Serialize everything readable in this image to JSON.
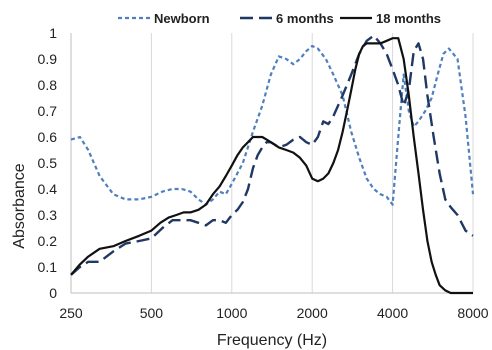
{
  "chart_data": {
    "type": "line",
    "xlabel": "Frequency (Hz)",
    "ylabel": "Absorbance",
    "x_scale": "log",
    "xlim": [
      250,
      8000
    ],
    "ylim": [
      0,
      1
    ],
    "x_ticks": [
      250,
      500,
      1000,
      2000,
      4000,
      8000
    ],
    "x_tick_labels": [
      "250",
      "500",
      "1000",
      "2000",
      "4000",
      "8000"
    ],
    "y_ticks": [
      0,
      0.1,
      0.2,
      0.3,
      0.4,
      0.5,
      0.6,
      0.7,
      0.8,
      0.9,
      1
    ],
    "y_tick_labels": [
      "0",
      "0.1",
      "0.2",
      "0.3",
      "0.4",
      "0.5",
      "0.6",
      "0.7",
      "0.8",
      "0.9",
      "1"
    ],
    "grid": "vertical",
    "legend_position": "top",
    "series": [
      {
        "name": "Newborn",
        "color": "#4f7fbd",
        "dash": "short-dash",
        "x": [
          250,
          270,
          290,
          320,
          360,
          400,
          450,
          500,
          550,
          600,
          650,
          700,
          750,
          800,
          850,
          900,
          950,
          1000,
          1100,
          1200,
          1300,
          1400,
          1500,
          1600,
          1700,
          1800,
          1900,
          2000,
          2100,
          2250,
          2400,
          2600,
          2800,
          3000,
          3200,
          3400,
          3600,
          3800,
          4000,
          4200,
          4400,
          4600,
          4800,
          5000,
          5300,
          5600,
          5900,
          6200,
          6500,
          7000,
          7500,
          8000
        ],
        "y": [
          0.59,
          0.6,
          0.55,
          0.45,
          0.38,
          0.36,
          0.36,
          0.37,
          0.39,
          0.4,
          0.4,
          0.39,
          0.36,
          0.34,
          0.36,
          0.39,
          0.38,
          0.42,
          0.5,
          0.62,
          0.72,
          0.84,
          0.91,
          0.9,
          0.88,
          0.9,
          0.93,
          0.95,
          0.94,
          0.9,
          0.84,
          0.76,
          0.62,
          0.52,
          0.44,
          0.4,
          0.38,
          0.37,
          0.34,
          0.6,
          0.84,
          0.7,
          0.64,
          0.66,
          0.7,
          0.75,
          0.84,
          0.92,
          0.94,
          0.9,
          0.68,
          0.38
        ]
      },
      {
        "name": "6 months",
        "color": "#1f3864",
        "dash": "long-dash",
        "x": [
          250,
          270,
          290,
          320,
          360,
          400,
          450,
          500,
          550,
          600,
          650,
          700,
          750,
          800,
          850,
          900,
          950,
          1000,
          1050,
          1100,
          1150,
          1200,
          1250,
          1300,
          1350,
          1400,
          1450,
          1500,
          1600,
          1700,
          1800,
          1900,
          2000,
          2100,
          2200,
          2300,
          2400,
          2600,
          2800,
          3000,
          3200,
          3400,
          3600,
          3800,
          4000,
          4200,
          4400,
          4600,
          4800,
          5000,
          5200,
          5400,
          5700,
          6000,
          6300,
          6600,
          7000,
          7500,
          8000
        ],
        "y": [
          0.07,
          0.1,
          0.12,
          0.12,
          0.16,
          0.19,
          0.2,
          0.21,
          0.25,
          0.28,
          0.28,
          0.28,
          0.27,
          0.26,
          0.28,
          0.28,
          0.27,
          0.3,
          0.32,
          0.35,
          0.4,
          0.48,
          0.53,
          0.56,
          0.58,
          0.58,
          0.57,
          0.56,
          0.57,
          0.59,
          0.6,
          0.58,
          0.57,
          0.6,
          0.66,
          0.65,
          0.68,
          0.76,
          0.84,
          0.92,
          0.97,
          0.99,
          0.96,
          0.92,
          0.86,
          0.8,
          0.72,
          0.78,
          0.93,
          0.96,
          0.9,
          0.76,
          0.6,
          0.46,
          0.36,
          0.33,
          0.3,
          0.24,
          0.22
        ]
      },
      {
        "name": "18 months",
        "color": "#111111",
        "dash": "solid",
        "x": [
          250,
          270,
          290,
          320,
          360,
          400,
          450,
          500,
          540,
          580,
          620,
          660,
          700,
          750,
          800,
          850,
          900,
          950,
          1000,
          1050,
          1100,
          1150,
          1200,
          1250,
          1300,
          1350,
          1400,
          1450,
          1500,
          1600,
          1700,
          1800,
          1900,
          2000,
          2100,
          2200,
          2300,
          2400,
          2500,
          2600,
          2700,
          2800,
          2900,
          3000,
          3100,
          3200,
          3300,
          3400,
          3600,
          3800,
          4000,
          4200,
          4400,
          4600,
          4800,
          5000,
          5200,
          5400,
          5600,
          5800,
          6000,
          6300,
          6600,
          7000,
          7500,
          8000
        ],
        "y": [
          0.07,
          0.11,
          0.14,
          0.17,
          0.18,
          0.2,
          0.22,
          0.24,
          0.27,
          0.29,
          0.3,
          0.31,
          0.31,
          0.32,
          0.34,
          0.38,
          0.41,
          0.45,
          0.49,
          0.53,
          0.56,
          0.58,
          0.6,
          0.6,
          0.6,
          0.59,
          0.58,
          0.57,
          0.56,
          0.55,
          0.54,
          0.52,
          0.49,
          0.44,
          0.43,
          0.44,
          0.46,
          0.5,
          0.55,
          0.62,
          0.7,
          0.78,
          0.86,
          0.92,
          0.95,
          0.96,
          0.96,
          0.96,
          0.96,
          0.97,
          0.98,
          0.98,
          0.9,
          0.76,
          0.6,
          0.46,
          0.32,
          0.2,
          0.12,
          0.07,
          0.03,
          0.01,
          0.0,
          0.0,
          0.0,
          0.0
        ]
      }
    ]
  }
}
